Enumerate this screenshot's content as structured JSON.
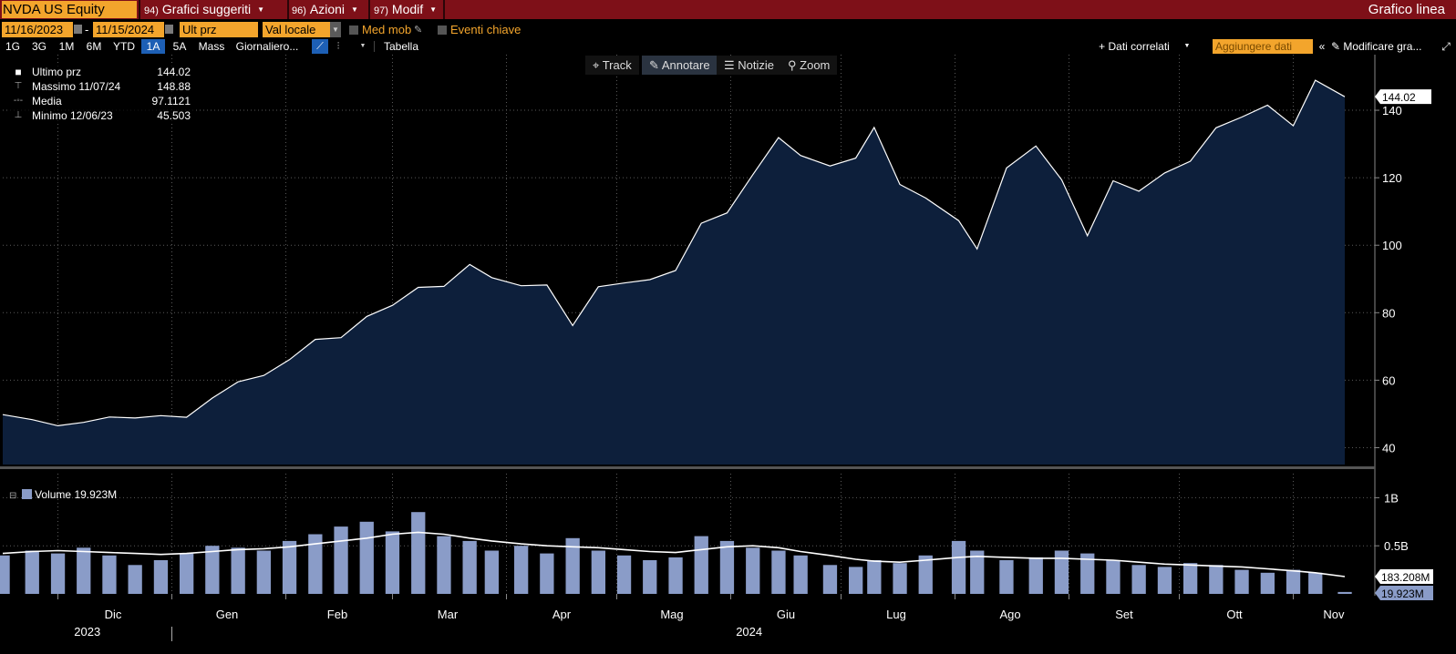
{
  "header": {
    "ticker": "NVDA US Equity",
    "menus": [
      {
        "num": "94)",
        "label": "Grafici suggeriti"
      },
      {
        "num": "96)",
        "label": "Azioni"
      },
      {
        "num": "97)",
        "label": "Modif"
      }
    ],
    "chart_type": "Grafico linea"
  },
  "controls": {
    "start_date": "11/16/2023",
    "date_sep": "-",
    "end_date": "11/15/2024",
    "field": "Ult prz",
    "currency": "Val locale",
    "moving_avg_label": "Med mob",
    "key_events_label": "Eventi chiave"
  },
  "periods": [
    "1G",
    "3G",
    "1M",
    "6M",
    "YTD",
    "1A",
    "5A",
    "Mass"
  ],
  "selected_period": "1A",
  "frequency": "Giornaliero...",
  "table_label": "Tabella",
  "related_data": "+ Dati correlati",
  "add_data": "Aggiungere dati",
  "modify_chart": "Modificare gra...",
  "tools": {
    "track": "Track",
    "annotate": "Annotare",
    "news": "Notizie",
    "zoom": "Zoom"
  },
  "legend": {
    "last_label": "Ultimo prz",
    "last_value": "144.02",
    "high_label": "Massimo 11/07/24",
    "high_value": "148.88",
    "avg_label": "Media",
    "avg_value": "97.1121",
    "low_label": "Minimo 12/06/23",
    "low_value": "45.503"
  },
  "volume_legend": {
    "label": "Volume",
    "value": "19.923M"
  },
  "colors": {
    "accent": "#f3a52c",
    "header_bg": "#7e1018",
    "area_fill": "#0d1f3b",
    "volume_bar": "#8a9cc8",
    "selected": "#1d5fb5"
  },
  "chart_data": [
    {
      "type": "area",
      "field": "Ultimo prz",
      "x": [
        "2023-11-16",
        "2023-11-24",
        "2023-12-01",
        "2023-12-08",
        "2023-12-15",
        "2023-12-22",
        "2023-12-29",
        "2024-01-05",
        "2024-01-12",
        "2024-01-19",
        "2024-01-26",
        "2024-02-02",
        "2024-02-09",
        "2024-02-16",
        "2024-02-23",
        "2024-03-01",
        "2024-03-08",
        "2024-03-15",
        "2024-03-22",
        "2024-03-28",
        "2024-04-05",
        "2024-04-12",
        "2024-04-19",
        "2024-04-26",
        "2024-05-03",
        "2024-05-10",
        "2024-05-17",
        "2024-05-24",
        "2024-05-31",
        "2024-06-07",
        "2024-06-14",
        "2024-06-20",
        "2024-06-28",
        "2024-07-05",
        "2024-07-10",
        "2024-07-17",
        "2024-07-24",
        "2024-08-02",
        "2024-08-07",
        "2024-08-15",
        "2024-08-23",
        "2024-08-30",
        "2024-09-06",
        "2024-09-13",
        "2024-09-20",
        "2024-09-27",
        "2024-10-04",
        "2024-10-11",
        "2024-10-18",
        "2024-10-25",
        "2024-11-01",
        "2024-11-07",
        "2024-11-15"
      ],
      "values": [
        49.8,
        48.3,
        46.5,
        47.5,
        49.1,
        48.8,
        49.5,
        49.0,
        54.7,
        59.5,
        61.4,
        66.1,
        72.1,
        72.6,
        78.9,
        82.2,
        87.5,
        87.8,
        94.3,
        90.4,
        88.0,
        88.2,
        76.2,
        87.7,
        88.8,
        89.8,
        92.5,
        106.5,
        109.6,
        120.9,
        131.9,
        126.6,
        123.5,
        125.8,
        134.9,
        118.0,
        114.0,
        107.3,
        98.9,
        122.9,
        129.4,
        119.4,
        102.8,
        119.1,
        116.0,
        121.4,
        124.9,
        134.8,
        138.0,
        141.5,
        135.4,
        148.88,
        144.02
      ],
      "ylim": [
        35,
        150
      ],
      "y_ticks": [
        "40",
        "60",
        "80",
        "100",
        "120",
        "140"
      ],
      "last_value_label": "144.02",
      "x_tick_labels": [
        "Dic",
        "Gen",
        "Feb",
        "Mar",
        "Apr",
        "Mag",
        "Giu",
        "Lug",
        "Ago",
        "Set",
        "Ott",
        "Nov"
      ],
      "year_labels": [
        "2023",
        "2024"
      ]
    },
    {
      "type": "bar",
      "field": "Volume",
      "unit": "billions of shares",
      "x": [
        "2023-11-16",
        "2023-11-24",
        "2023-12-01",
        "2023-12-08",
        "2023-12-15",
        "2023-12-22",
        "2023-12-29",
        "2024-01-05",
        "2024-01-12",
        "2024-01-19",
        "2024-01-26",
        "2024-02-02",
        "2024-02-09",
        "2024-02-16",
        "2024-02-23",
        "2024-03-01",
        "2024-03-08",
        "2024-03-15",
        "2024-03-22",
        "2024-03-28",
        "2024-04-05",
        "2024-04-12",
        "2024-04-19",
        "2024-04-26",
        "2024-05-03",
        "2024-05-10",
        "2024-05-17",
        "2024-05-24",
        "2024-05-31",
        "2024-06-07",
        "2024-06-14",
        "2024-06-20",
        "2024-06-28",
        "2024-07-05",
        "2024-07-10",
        "2024-07-17",
        "2024-07-24",
        "2024-08-02",
        "2024-08-07",
        "2024-08-15",
        "2024-08-23",
        "2024-08-30",
        "2024-09-06",
        "2024-09-13",
        "2024-09-20",
        "2024-09-27",
        "2024-10-04",
        "2024-10-11",
        "2024-10-18",
        "2024-10-25",
        "2024-11-01",
        "2024-11-07",
        "2024-11-15"
      ],
      "values": [
        0.4,
        0.45,
        0.42,
        0.48,
        0.4,
        0.3,
        0.35,
        0.42,
        0.5,
        0.48,
        0.45,
        0.55,
        0.62,
        0.7,
        0.75,
        0.65,
        0.85,
        0.6,
        0.55,
        0.45,
        0.5,
        0.42,
        0.58,
        0.45,
        0.4,
        0.35,
        0.38,
        0.6,
        0.55,
        0.48,
        0.45,
        0.4,
        0.3,
        0.28,
        0.35,
        0.32,
        0.4,
        0.55,
        0.45,
        0.35,
        0.38,
        0.45,
        0.42,
        0.35,
        0.3,
        0.28,
        0.32,
        0.3,
        0.25,
        0.22,
        0.25,
        0.22,
        0.02
      ],
      "moving_average": [
        0.42,
        0.44,
        0.45,
        0.44,
        0.43,
        0.42,
        0.41,
        0.42,
        0.44,
        0.46,
        0.47,
        0.49,
        0.52,
        0.55,
        0.58,
        0.62,
        0.64,
        0.62,
        0.58,
        0.55,
        0.52,
        0.5,
        0.49,
        0.48,
        0.46,
        0.44,
        0.43,
        0.46,
        0.49,
        0.5,
        0.48,
        0.44,
        0.4,
        0.36,
        0.34,
        0.33,
        0.35,
        0.38,
        0.39,
        0.38,
        0.37,
        0.37,
        0.36,
        0.35,
        0.33,
        0.31,
        0.3,
        0.29,
        0.28,
        0.26,
        0.24,
        0.22,
        0.18
      ],
      "ylim": [
        0,
        1.25
      ],
      "y_ticks": [
        "1B",
        "0.5B"
      ],
      "ma_label": "183.208M",
      "last_label": "19.923M"
    }
  ]
}
